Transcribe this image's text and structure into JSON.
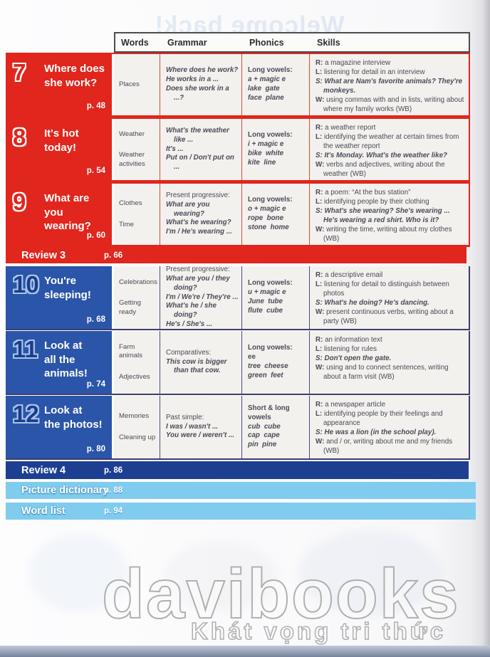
{
  "page": {
    "ghost_title": "Welcome back!",
    "watermark": {
      "brand": "davibooks",
      "tagline": "Khát vọng tri thức"
    }
  },
  "colors": {
    "unit_red": "#e0261d",
    "unit_blue": "#2b55a8",
    "review_navy": "#1d3f92",
    "footer_sky": "#7fccee",
    "cell_bg": "#f2f1ed",
    "body_text": "#4b4a59"
  },
  "table": {
    "headers": [
      "Words",
      "Grammar",
      "Phonics",
      "Skills"
    ],
    "rows": [
      {
        "type": "unit",
        "theme": "red",
        "number": "7",
        "title": "Where does\nshe work?",
        "page": "p. 48",
        "words": [
          {
            "t": "Places",
            "st": "n"
          }
        ],
        "grammar": [
          {
            "t": "Where does he work?",
            "st": "bi"
          },
          {
            "t": "He works in a ...",
            "st": "bi"
          },
          {
            "t": "Does she work in a ...?",
            "st": "bi"
          }
        ],
        "phonics": [
          {
            "t": "Long vowels:",
            "st": "b"
          },
          {
            "t": "a + magic e",
            "st": "bi"
          },
          {
            "t": "lake  gate",
            "st": "bi"
          },
          {
            "t": "face  plane",
            "st": "bi"
          }
        ],
        "skills": [
          {
            "p": "R:",
            "t": "a magazine interview",
            "st": "n"
          },
          {
            "p": "L:",
            "t": "listening for detail in an interview",
            "st": "n"
          },
          {
            "p": "S:",
            "t": "What are Nam's favorite animals? They're monkeys.",
            "st": "bi"
          },
          {
            "p": "W:",
            "t": "using commas with and in lists, writing about where my family works (WB)",
            "st": "n"
          }
        ]
      },
      {
        "type": "unit",
        "theme": "red",
        "number": "8",
        "title": "It's hot\ntoday!",
        "page": "p. 54",
        "words": [
          {
            "t": "Weather",
            "st": "n"
          },
          {
            "t": "Weather activities",
            "st": "n"
          }
        ],
        "grammar": [
          {
            "t": "What's the weather like ...",
            "st": "bi"
          },
          {
            "t": "It's ...",
            "st": "bi"
          },
          {
            "t": "Put on / Don't put on ...",
            "st": "bi"
          }
        ],
        "phonics": [
          {
            "t": "Long vowels:",
            "st": "b"
          },
          {
            "t": "i + magic e",
            "st": "bi"
          },
          {
            "t": "bike  white",
            "st": "bi"
          },
          {
            "t": "kite  line",
            "st": "bi"
          }
        ],
        "skills": [
          {
            "p": "R:",
            "t": "a weather report",
            "st": "n"
          },
          {
            "p": "L:",
            "t": "identifying the weather at certain times from the weather report",
            "st": "n"
          },
          {
            "p": "S:",
            "t": "It's Monday. What's the weather like?",
            "st": "bi"
          },
          {
            "p": "W:",
            "t": "verbs and adjectives, writing about the weather (WB)",
            "st": "n"
          }
        ]
      },
      {
        "type": "unit",
        "theme": "red",
        "number": "9",
        "title": "What are you\nwearing?",
        "page": "p. 60",
        "words": [
          {
            "t": "Clothes",
            "st": "n"
          },
          {
            "t": "Time",
            "st": "n"
          }
        ],
        "grammar": [
          {
            "t": "Present progressive:",
            "st": "n"
          },
          {
            "t": "What are you wearing?",
            "st": "bi"
          },
          {
            "t": "What's he wearing?",
            "st": "bi"
          },
          {
            "t": "I'm / He's wearing ...",
            "st": "bi"
          }
        ],
        "phonics": [
          {
            "t": "Long vowels:",
            "st": "b"
          },
          {
            "t": "o + magic e",
            "st": "bi"
          },
          {
            "t": "rope  bone",
            "st": "bi"
          },
          {
            "t": "stone  home",
            "st": "bi"
          }
        ],
        "skills": [
          {
            "p": "R:",
            "t": "a poem: “At the bus station”",
            "st": "n"
          },
          {
            "p": "L:",
            "t": "identifying people by their clothing",
            "st": "n"
          },
          {
            "p": "S:",
            "t": "What's she wearing? She's wearing ... He's wearing a red shirt. Who is it?",
            "st": "bi"
          },
          {
            "p": "W:",
            "t": "writing the time, writing about my clothes (WB)",
            "st": "n"
          }
        ]
      },
      {
        "type": "bar",
        "variant": "red-bar",
        "label": "Review 3",
        "page": "p. 66"
      },
      {
        "type": "unit",
        "theme": "blue",
        "number": "10",
        "title": "You're\nsleeping!",
        "page": "p. 68",
        "words": [
          {
            "t": "Celebrations",
            "st": "n"
          },
          {
            "t": "Getting ready",
            "st": "n"
          }
        ],
        "grammar": [
          {
            "t": "Present progressive:",
            "st": "n"
          },
          {
            "t": "What are you / they doing?",
            "st": "bi"
          },
          {
            "t": "I'm / We're / They're ...",
            "st": "bi"
          },
          {
            "t": "What's he / she doing?",
            "st": "bi"
          },
          {
            "t": "He's / She's ...",
            "st": "bi"
          }
        ],
        "phonics": [
          {
            "t": "Long vowels:",
            "st": "b"
          },
          {
            "t": "u + magic e",
            "st": "bi"
          },
          {
            "t": "June  tube",
            "st": "bi"
          },
          {
            "t": "flute  cube",
            "st": "bi"
          }
        ],
        "skills": [
          {
            "p": "R:",
            "t": "a descriptive email",
            "st": "n"
          },
          {
            "p": "L:",
            "t": "listening for detail to distinguish between photos",
            "st": "n"
          },
          {
            "p": "S:",
            "t": "What's he doing? He's dancing.",
            "st": "bi"
          },
          {
            "p": "W:",
            "t": "present continuous verbs, writing about a party (WB)",
            "st": "n"
          }
        ]
      },
      {
        "type": "unit",
        "theme": "blue",
        "number": "11",
        "title": "Look at\nall the\nanimals!",
        "page": "p. 74",
        "words": [
          {
            "t": "Farm animals",
            "st": "n"
          },
          {
            "t": "Adjectives",
            "st": "n"
          }
        ],
        "grammar": [
          {
            "t": "Comparatives:",
            "st": "n"
          },
          {
            "t": "This cow is bigger than that cow.",
            "st": "bi"
          }
        ],
        "phonics": [
          {
            "t": "Long vowels:",
            "st": "b"
          },
          {
            "t": "ee",
            "st": "b"
          },
          {
            "t": "tree  cheese",
            "st": "bi"
          },
          {
            "t": "green  feet",
            "st": "bi"
          }
        ],
        "skills": [
          {
            "p": "R:",
            "t": "an information text",
            "st": "n"
          },
          {
            "p": "L:",
            "t": "listening for rules",
            "st": "n"
          },
          {
            "p": "S:",
            "t": "Don't open the gate.",
            "st": "bi"
          },
          {
            "p": "W:",
            "t": "using and to connect sentences, writing about a farm visit (WB)",
            "st": "n"
          }
        ]
      },
      {
        "type": "unit",
        "theme": "blue",
        "number": "12",
        "title": "Look at\nthe photos!",
        "page": "p. 80",
        "words": [
          {
            "t": "Memories",
            "st": "n"
          },
          {
            "t": "Cleaning up",
            "st": "n"
          }
        ],
        "grammar": [
          {
            "t": "Past simple:",
            "st": "n"
          },
          {
            "t": "I was / wasn't ...",
            "st": "bi"
          },
          {
            "t": "You were / weren't ...",
            "st": "bi"
          }
        ],
        "phonics": [
          {
            "t": "Short & long",
            "st": "b"
          },
          {
            "t": "vowels",
            "st": "b"
          },
          {
            "t": "cub  cube",
            "st": "bi"
          },
          {
            "t": "cap  cape",
            "st": "bi"
          },
          {
            "t": "pin  pine",
            "st": "bi"
          }
        ],
        "skills": [
          {
            "p": "R:",
            "t": "a newspaper article",
            "st": "n"
          },
          {
            "p": "L:",
            "t": "identifying people by their feelings and appearance",
            "st": "n"
          },
          {
            "p": "S:",
            "t": "He was a lion (in the school play).",
            "st": "bi"
          },
          {
            "p": "W:",
            "t": "and / or, writing about me and my friends (WB)",
            "st": "n"
          }
        ]
      },
      {
        "type": "bar",
        "variant": "navy-bar",
        "label": "Review 4",
        "page": "p. 86"
      },
      {
        "type": "bar",
        "variant": "sky-bar",
        "label": "Picture dictionary",
        "page": "p. 88"
      },
      {
        "type": "bar",
        "variant": "sky-bar",
        "label": "Word list",
        "page": "p. 94"
      }
    ]
  }
}
